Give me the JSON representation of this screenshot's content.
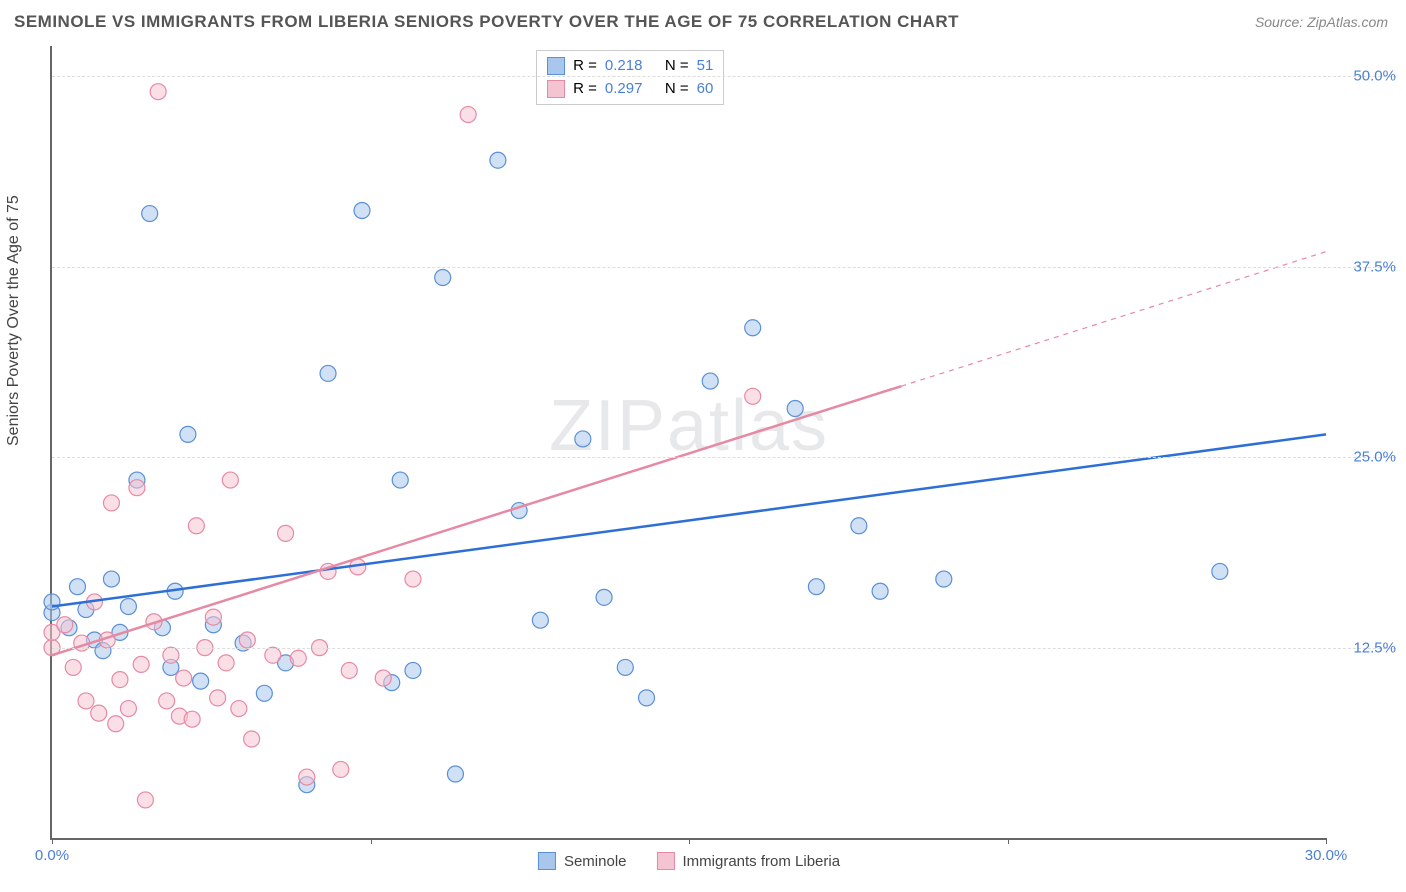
{
  "title": "SEMINOLE VS IMMIGRANTS FROM LIBERIA SENIORS POVERTY OVER THE AGE OF 75 CORRELATION CHART",
  "source_label": "Source:",
  "source_name": "ZipAtlas.com",
  "watermark": "ZIPatlas",
  "y_axis_label": "Seniors Poverty Over the Age of 75",
  "chart": {
    "type": "scatter",
    "xlim": [
      0,
      30
    ],
    "ylim": [
      0,
      52
    ],
    "x_ticks": [
      0,
      7.5,
      15,
      22.5,
      30
    ],
    "x_tick_labels": [
      "0.0%",
      "",
      "",
      "",
      "30.0%"
    ],
    "y_ticks": [
      12.5,
      25,
      37.5,
      50
    ],
    "y_tick_labels": [
      "12.5%",
      "25.0%",
      "37.5%",
      "50.0%"
    ],
    "grid_color": "#dddddd",
    "axis_color": "#666666",
    "background_color": "#ffffff",
    "marker_radius": 8,
    "marker_stroke_width": 1.2,
    "marker_fill_opacity": 0.25,
    "trend_line_width": 2.5,
    "series": [
      {
        "name": "Seminole",
        "color": "#5b8fd6",
        "fill": "#a9c6ec",
        "R": "0.218",
        "N": "51",
        "trend": {
          "x1": 0,
          "y1": 15.2,
          "x2": 30,
          "y2": 26.5,
          "dash_after_x": null
        },
        "points": [
          [
            0,
            14.8
          ],
          [
            0,
            15.5
          ],
          [
            0.4,
            13.8
          ],
          [
            0.6,
            16.5
          ],
          [
            0.8,
            15.0
          ],
          [
            1.0,
            13.0
          ],
          [
            1.2,
            12.3
          ],
          [
            1.4,
            17.0
          ],
          [
            1.6,
            13.5
          ],
          [
            1.8,
            15.2
          ],
          [
            2.0,
            23.5
          ],
          [
            2.3,
            41.0
          ],
          [
            2.6,
            13.8
          ],
          [
            2.8,
            11.2
          ],
          [
            2.9,
            16.2
          ],
          [
            3.2,
            26.5
          ],
          [
            3.5,
            10.3
          ],
          [
            3.8,
            14.0
          ],
          [
            4.5,
            12.8
          ],
          [
            5.0,
            9.5
          ],
          [
            5.5,
            11.5
          ],
          [
            6.0,
            3.5
          ],
          [
            6.5,
            30.5
          ],
          [
            7.3,
            41.2
          ],
          [
            8.0,
            10.2
          ],
          [
            8.2,
            23.5
          ],
          [
            8.5,
            11.0
          ],
          [
            9.2,
            36.8
          ],
          [
            9.5,
            4.2
          ],
          [
            10.5,
            44.5
          ],
          [
            11.0,
            21.5
          ],
          [
            11.5,
            14.3
          ],
          [
            12.5,
            26.2
          ],
          [
            13.0,
            15.8
          ],
          [
            13.5,
            11.2
          ],
          [
            14.0,
            9.2
          ],
          [
            15.5,
            30.0
          ],
          [
            16.5,
            33.5
          ],
          [
            17.5,
            28.2
          ],
          [
            18.0,
            16.5
          ],
          [
            19.0,
            20.5
          ],
          [
            19.5,
            16.2
          ],
          [
            21.0,
            17.0
          ],
          [
            27.5,
            17.5
          ]
        ]
      },
      {
        "name": "Immigrants from Liberia",
        "color": "#e68aa4",
        "fill": "#f5c4d2",
        "R": "0.297",
        "N": "60",
        "trend": {
          "x1": 0,
          "y1": 12.0,
          "x2": 30,
          "y2": 38.5,
          "dash_after_x": 20
        },
        "points": [
          [
            0,
            12.5
          ],
          [
            0,
            13.5
          ],
          [
            0.3,
            14.0
          ],
          [
            0.5,
            11.2
          ],
          [
            0.7,
            12.8
          ],
          [
            0.8,
            9.0
          ],
          [
            1.0,
            15.5
          ],
          [
            1.1,
            8.2
          ],
          [
            1.3,
            13.0
          ],
          [
            1.4,
            22.0
          ],
          [
            1.5,
            7.5
          ],
          [
            1.6,
            10.4
          ],
          [
            1.8,
            8.5
          ],
          [
            2.0,
            23.0
          ],
          [
            2.1,
            11.4
          ],
          [
            2.2,
            2.5
          ],
          [
            2.4,
            14.2
          ],
          [
            2.5,
            49.0
          ],
          [
            2.7,
            9.0
          ],
          [
            2.8,
            12.0
          ],
          [
            3.0,
            8.0
          ],
          [
            3.1,
            10.5
          ],
          [
            3.3,
            7.8
          ],
          [
            3.4,
            20.5
          ],
          [
            3.6,
            12.5
          ],
          [
            3.8,
            14.5
          ],
          [
            3.9,
            9.2
          ],
          [
            4.1,
            11.5
          ],
          [
            4.2,
            23.5
          ],
          [
            4.4,
            8.5
          ],
          [
            4.6,
            13.0
          ],
          [
            4.7,
            6.5
          ],
          [
            5.2,
            12.0
          ],
          [
            5.5,
            20.0
          ],
          [
            5.8,
            11.8
          ],
          [
            6.0,
            4.0
          ],
          [
            6.3,
            12.5
          ],
          [
            6.5,
            17.5
          ],
          [
            6.8,
            4.5
          ],
          [
            7.0,
            11.0
          ],
          [
            7.2,
            17.8
          ],
          [
            7.8,
            10.5
          ],
          [
            8.5,
            17.0
          ],
          [
            9.8,
            47.5
          ],
          [
            16.5,
            29.0
          ]
        ]
      }
    ]
  },
  "legend_top": {
    "R_label": "R =",
    "N_label": "N ="
  },
  "colors": {
    "tick_text": "#4a7fd8",
    "value_text": "#4a7fd8",
    "title_text": "#555555",
    "label_text": "#444444"
  }
}
